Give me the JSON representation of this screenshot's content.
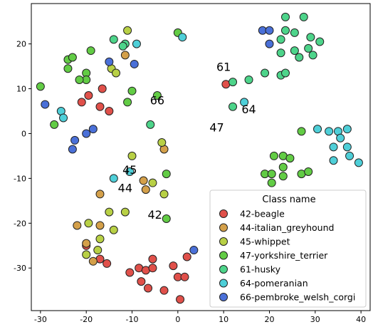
{
  "chart_data": {
    "type": "scatter",
    "title": "",
    "xlabel": "",
    "ylabel": "",
    "xlim": [
      -32,
      42
    ],
    "ylim": [
      -39.5,
      29
    ],
    "xticks": [
      -30,
      -20,
      -10,
      0,
      10,
      20,
      30,
      40
    ],
    "yticks": [
      -30,
      -20,
      -10,
      0,
      10,
      20
    ],
    "grid": false,
    "legend": {
      "title": "Class name",
      "placement": "lower-right"
    },
    "series": [
      {
        "name": "42-beagle",
        "color": "#e0504a",
        "points": [
          [
            -19.5,
            8.5
          ],
          [
            -21,
            7
          ],
          [
            -16.5,
            10
          ],
          [
            -17,
            6
          ],
          [
            -15,
            5
          ],
          [
            -20,
            -25
          ],
          [
            -17,
            -28
          ],
          [
            -15.5,
            -29
          ],
          [
            -10.5,
            -31
          ],
          [
            -8.5,
            -30
          ],
          [
            -7,
            -30.5
          ],
          [
            -5.5,
            -30
          ],
          [
            -8,
            -33
          ],
          [
            -6.5,
            -34.5
          ],
          [
            -3,
            -35
          ],
          [
            -5.5,
            -28
          ],
          [
            -1,
            -29.5
          ],
          [
            0,
            -32
          ],
          [
            1.5,
            -32
          ],
          [
            2,
            -27.5
          ],
          [
            0.5,
            -37
          ],
          [
            10.5,
            11
          ]
        ]
      },
      {
        "name": "44-italian_greyhound",
        "color": "#d4a04a",
        "points": [
          [
            -11.5,
            17.5
          ],
          [
            -3,
            -3.5
          ],
          [
            -7.5,
            -10.5
          ],
          [
            -7,
            -12.5
          ],
          [
            -17,
            -13.5
          ],
          [
            -22,
            -20.5
          ],
          [
            -20,
            -24.5
          ],
          [
            -17,
            -20.5
          ],
          [
            -18.5,
            -28.5
          ]
        ]
      },
      {
        "name": "45-whippet",
        "color": "#b8d045",
        "points": [
          [
            -14.5,
            14.5
          ],
          [
            -11,
            23
          ],
          [
            -13.5,
            13.5
          ],
          [
            -3.5,
            -2
          ],
          [
            -10,
            -5
          ],
          [
            -5.5,
            -11
          ],
          [
            -3,
            -13.5
          ],
          [
            -15,
            -17.5
          ],
          [
            -11.5,
            -17.5
          ],
          [
            -14,
            -21.5
          ],
          [
            -17,
            -23.5
          ],
          [
            -19.5,
            -20
          ],
          [
            -17.5,
            -26
          ],
          [
            -20,
            -27
          ]
        ]
      },
      {
        "name": "47-yorkshire_terrier",
        "color": "#62cc45",
        "points": [
          [
            -24,
            16.5
          ],
          [
            -23,
            17
          ],
          [
            -24,
            14.5
          ],
          [
            -20,
            13.5
          ],
          [
            -20,
            12
          ],
          [
            -19,
            18.5
          ],
          [
            -21.5,
            12
          ],
          [
            -27,
            2
          ],
          [
            -30,
            10.5
          ],
          [
            -11,
            7
          ],
          [
            -10,
            9.5
          ],
          [
            -4.5,
            8.5
          ],
          [
            0,
            22.5
          ],
          [
            27,
            0.5
          ],
          [
            21,
            -5
          ],
          [
            23,
            -5
          ],
          [
            24.5,
            -5.5
          ],
          [
            19,
            -9
          ],
          [
            20.5,
            -9
          ],
          [
            23,
            -7.5
          ],
          [
            23,
            -9.5
          ],
          [
            27,
            -9
          ],
          [
            28.5,
            -8.5
          ],
          [
            20.5,
            -11
          ],
          [
            -2.5,
            -9
          ],
          [
            -2.5,
            -19
          ]
        ]
      },
      {
        "name": "61-husky",
        "color": "#4dd48a",
        "points": [
          [
            -14,
            21
          ],
          [
            -11.5,
            20
          ],
          [
            -12,
            19.5
          ],
          [
            12,
            11.5
          ],
          [
            15.5,
            12
          ],
          [
            19,
            13.5
          ],
          [
            22.5,
            13
          ],
          [
            23.5,
            13.5
          ],
          [
            23.5,
            26
          ],
          [
            27.5,
            26
          ],
          [
            22.5,
            21
          ],
          [
            23.5,
            23
          ],
          [
            25.5,
            22.5
          ],
          [
            29,
            21.5
          ],
          [
            31,
            20.5
          ],
          [
            22.5,
            18
          ],
          [
            25.5,
            18.5
          ],
          [
            28.5,
            19
          ],
          [
            29.5,
            17.5
          ],
          [
            26.5,
            17
          ],
          [
            12,
            6
          ],
          [
            -6,
            2
          ]
        ]
      },
      {
        "name": "64-pomeranian",
        "color": "#4ecfd8",
        "points": [
          [
            -25.5,
            5
          ],
          [
            -25,
            3.5
          ],
          [
            -9,
            20
          ],
          [
            -14,
            -10
          ],
          [
            -10.5,
            -8.5
          ],
          [
            1,
            21.5
          ],
          [
            14.5,
            7
          ],
          [
            30.5,
            1
          ],
          [
            33,
            0.5
          ],
          [
            35,
            0.5
          ],
          [
            37,
            1
          ],
          [
            35.5,
            -1
          ],
          [
            34,
            -3
          ],
          [
            37,
            -3
          ],
          [
            37.5,
            -5
          ],
          [
            34,
            -6
          ],
          [
            39.5,
            -6.5
          ]
        ]
      },
      {
        "name": "66-pembroke_welsh_corgi",
        "color": "#4a70d8",
        "points": [
          [
            -29,
            6.5
          ],
          [
            -22.5,
            -1.5
          ],
          [
            -23,
            -3.5
          ],
          [
            -20,
            0
          ],
          [
            -18.5,
            1
          ],
          [
            -15,
            16
          ],
          [
            -9.5,
            15.5
          ],
          [
            3.5,
            -26
          ],
          [
            18.5,
            23
          ],
          [
            20,
            23
          ],
          [
            20,
            20
          ]
        ]
      }
    ],
    "annotations": [
      {
        "text": "61",
        "x": 10,
        "y": 14
      },
      {
        "text": "64",
        "x": 15.5,
        "y": 4.5
      },
      {
        "text": "66",
        "x": -4.5,
        "y": 6.5
      },
      {
        "text": "47",
        "x": 8.5,
        "y": 0.5
      },
      {
        "text": "45",
        "x": -10.5,
        "y": -9
      },
      {
        "text": "44",
        "x": -11.5,
        "y": -13
      },
      {
        "text": "42",
        "x": -5,
        "y": -19
      }
    ]
  }
}
